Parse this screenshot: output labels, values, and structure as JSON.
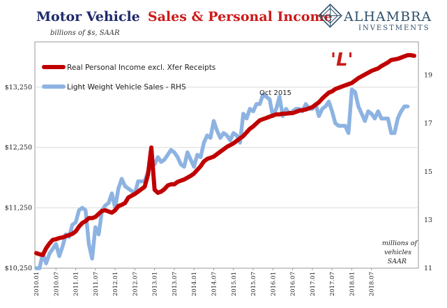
{
  "chart_data": {
    "type": "line",
    "title_part1": "Motor Vehicle",
    "title_part2": "Sales & Personal Income",
    "subtitle": "billions of $s, SAAR",
    "right_axis_label": [
      "millions of",
      "vehicles",
      "SAAR"
    ],
    "annotations": {
      "oct2015": "Oct 2015",
      "l_shape": "'L'"
    },
    "logo": {
      "main": "ALHAMBRA",
      "sub": "INVESTMENTS"
    },
    "x_ticks": [
      "2010.01",
      "2010.07",
      "2011.01",
      "2011.07",
      "2012.01",
      "2012.07",
      "2013.01",
      "2013.07",
      "2014.01",
      "2014.07",
      "2015.01",
      "2015.07",
      "2016.01",
      "2016.07",
      "2017.01",
      "2017.07",
      "2018.01",
      "2018.07"
    ],
    "y_left": {
      "min": 10250,
      "max": 14000,
      "ticks": [
        "$10,250",
        "$11,250",
        "$12,250",
        "$13,250"
      ],
      "tick_values": [
        10250,
        11250,
        12250,
        13250
      ]
    },
    "y_right": {
      "min": 11,
      "max": 20.375,
      "ticks": [
        "11",
        "13",
        "15",
        "17",
        "19"
      ],
      "tick_values": [
        11,
        13,
        15,
        17,
        19
      ]
    },
    "legend_position": "top-left",
    "series": [
      {
        "name": "Real Personal Income excl. Xfer Receipts",
        "axis": "left",
        "color": "#c00000",
        "values": [
          10500,
          10480,
          10470,
          10580,
          10660,
          10720,
          10730,
          10750,
          10760,
          10780,
          10800,
          10820,
          10860,
          10940,
          11000,
          11030,
          11080,
          11080,
          11100,
          11150,
          11200,
          11210,
          11190,
          11170,
          11210,
          11280,
          11300,
          11330,
          11420,
          11450,
          11480,
          11520,
          11560,
          11600,
          11800,
          12250,
          11550,
          11500,
          11520,
          11560,
          11620,
          11640,
          11640,
          11680,
          11700,
          11720,
          11750,
          11780,
          11820,
          11880,
          11940,
          12020,
          12060,
          12080,
          12100,
          12140,
          12180,
          12220,
          12260,
          12290,
          12320,
          12360,
          12400,
          12440,
          12500,
          12560,
          12600,
          12650,
          12700,
          12720,
          12740,
          12760,
          12780,
          12800,
          12800,
          12810,
          12810,
          12820,
          12820,
          12840,
          12860,
          12870,
          12880,
          12900,
          12920,
          12960,
          13000,
          13060,
          13110,
          13160,
          13180,
          13220,
          13240,
          13260,
          13280,
          13300,
          13320,
          13360,
          13400,
          13430,
          13460,
          13490,
          13520,
          13540,
          13560,
          13600,
          13630,
          13660,
          13700,
          13710,
          13720,
          13740,
          13760,
          13780,
          13780,
          13770
        ]
      },
      {
        "name": "Light Weight Vehicle Sales - RHS",
        "axis": "right",
        "color": "#8db3e2",
        "values": [
          11.0,
          11.0,
          11.6,
          11.2,
          11.6,
          11.8,
          12.0,
          11.5,
          11.9,
          12.4,
          12.3,
          12.8,
          12.9,
          13.4,
          13.5,
          13.4,
          12.0,
          11.4,
          12.7,
          12.4,
          13.4,
          13.6,
          13.7,
          14.1,
          13.5,
          14.3,
          14.7,
          14.4,
          14.3,
          14.2,
          14.1,
          14.6,
          14.6,
          14.6,
          15.0,
          15.3,
          15.3,
          15.6,
          15.4,
          15.5,
          15.7,
          15.9,
          15.8,
          15.6,
          15.3,
          15.2,
          15.8,
          15.5,
          15.2,
          15.7,
          15.6,
          16.2,
          16.5,
          16.4,
          17.1,
          16.7,
          16.4,
          16.6,
          16.5,
          16.3,
          16.6,
          16.5,
          16.2,
          17.4,
          17.2,
          17.6,
          17.5,
          17.8,
          17.8,
          18.2,
          18.1,
          18.0,
          17.3,
          17.6,
          18.1,
          17.3,
          17.6,
          17.4,
          17.5,
          17.6,
          17.6,
          17.5,
          17.8,
          17.6,
          17.6,
          17.8,
          17.3,
          17.6,
          17.7,
          17.9,
          17.5,
          17.0,
          16.9,
          16.9,
          16.9,
          16.6,
          18.4,
          18.3,
          17.7,
          17.4,
          17.1,
          17.5,
          17.4,
          17.2,
          17.5,
          17.2,
          17.2,
          17.2,
          16.6,
          16.6,
          17.2,
          17.5,
          17.7,
          17.7
        ]
      }
    ]
  }
}
